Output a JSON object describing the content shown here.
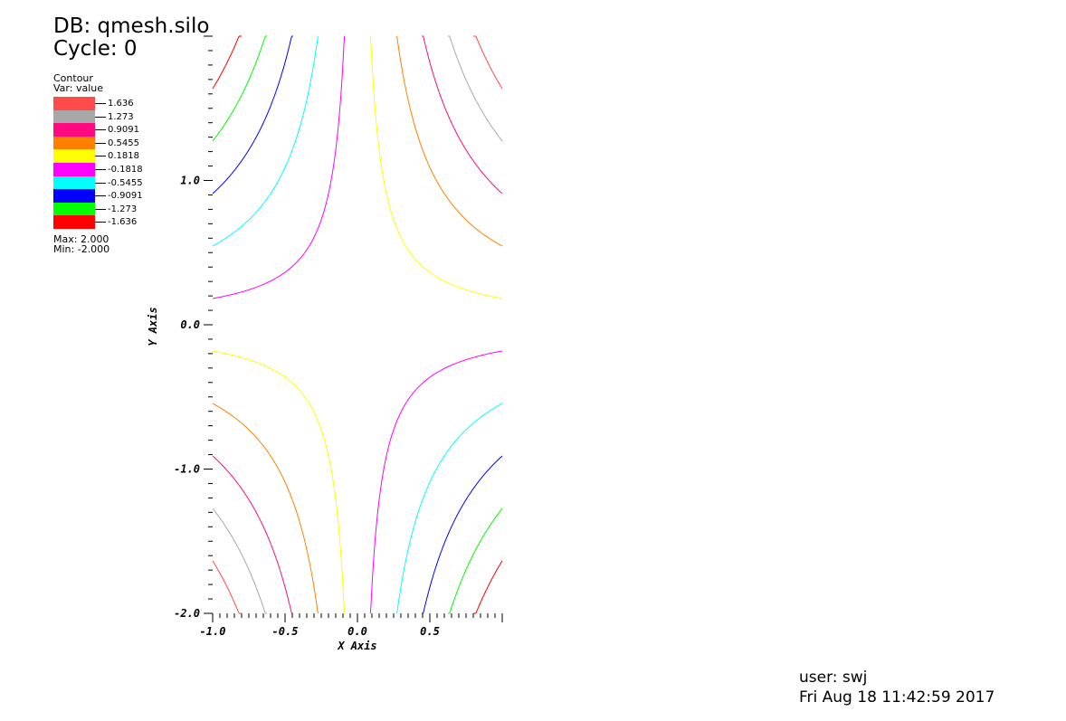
{
  "header": {
    "db": "DB: qmesh.silo",
    "cycle": "Cycle: 0"
  },
  "legend": {
    "title": "Contour",
    "var": "Var: value",
    "entries": [
      {
        "label": "1.636",
        "color": "#ff4b4b"
      },
      {
        "label": "1.273",
        "color": "#a8a8a8"
      },
      {
        "label": "0.9091",
        "color": "#ff0a7f"
      },
      {
        "label": "0.5455",
        "color": "#ff8000"
      },
      {
        "label": "0.1818",
        "color": "#ffff00"
      },
      {
        "label": "-0.1818",
        "color": "#ff00ff"
      },
      {
        "label": "-0.5455",
        "color": "#00ffff"
      },
      {
        "label": "-0.9091",
        "color": "#0000ff"
      },
      {
        "label": "-1.273",
        "color": "#00ff00"
      },
      {
        "label": "-1.636",
        "color": "#ff0000"
      }
    ],
    "max": "Max:  2.000",
    "min": "Min: -2.000"
  },
  "chart_data": {
    "type": "contour",
    "function": "z = x*y",
    "xlabel": "X Axis",
    "ylabel": "Y Axis",
    "xlim": [
      -1.0,
      1.0
    ],
    "ylim": [
      -2.0,
      2.0
    ],
    "xticks": [
      {
        "value": -1.0,
        "label": "-1.0"
      },
      {
        "value": -0.5,
        "label": "-0.5"
      },
      {
        "value": 0.0,
        "label": "0.0"
      },
      {
        "value": 0.5,
        "label": "0.5"
      }
    ],
    "yticks": [
      {
        "value": -2.0,
        "label": "-2.0"
      },
      {
        "value": -1.0,
        "label": "-1.0"
      },
      {
        "value": 0.0,
        "label": "0.0"
      },
      {
        "value": 1.0,
        "label": "1.0"
      }
    ],
    "levels": [
      1.636,
      1.273,
      0.9091,
      0.5455,
      0.1818,
      -0.1818,
      -0.5455,
      -0.9091,
      -1.273,
      -1.636
    ],
    "level_colors": [
      "#ff4b4b",
      "#a8a8a8",
      "#ff0a7f",
      "#ff8000",
      "#ffff00",
      "#ff00ff",
      "#00ffff",
      "#0000ff",
      "#00ff00",
      "#ff0000"
    ],
    "max": 2.0,
    "min": -2.0
  },
  "footer": {
    "user": "user: swj",
    "date": "Fri Aug 18 11:42:59 2017"
  }
}
